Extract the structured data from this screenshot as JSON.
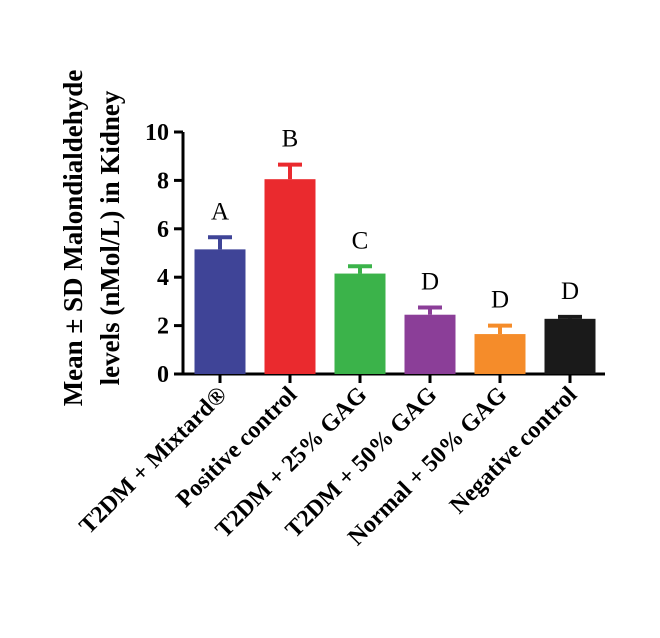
{
  "chart_data": {
    "type": "bar",
    "title": "",
    "ylabel_lines": [
      "Mean ± SD Malondialdehyde",
      "levels (nMol/L) in Kidney"
    ],
    "xlabel": "",
    "ylim": [
      0,
      10
    ],
    "yticks": [
      0,
      2,
      4,
      6,
      8,
      10
    ],
    "categories": [
      "T2DM + Mixtard®",
      "Positive control",
      "T2DM + 25% GAG",
      "T2DM + 50% GAG",
      "Normal + 50% GAG",
      "Negative control"
    ],
    "values": [
      5.15,
      8.05,
      4.15,
      2.45,
      1.65,
      2.28
    ],
    "errors": [
      0.5,
      0.6,
      0.3,
      0.3,
      0.35,
      0.08
    ],
    "significance": [
      "A",
      "B",
      "C",
      "D",
      "D",
      "D"
    ],
    "colors": [
      "#3f4497",
      "#ea2a2e",
      "#3bb34a",
      "#8b3e98",
      "#f58c2a",
      "#1a1a1a"
    ],
    "grid": false,
    "legend": "none"
  }
}
